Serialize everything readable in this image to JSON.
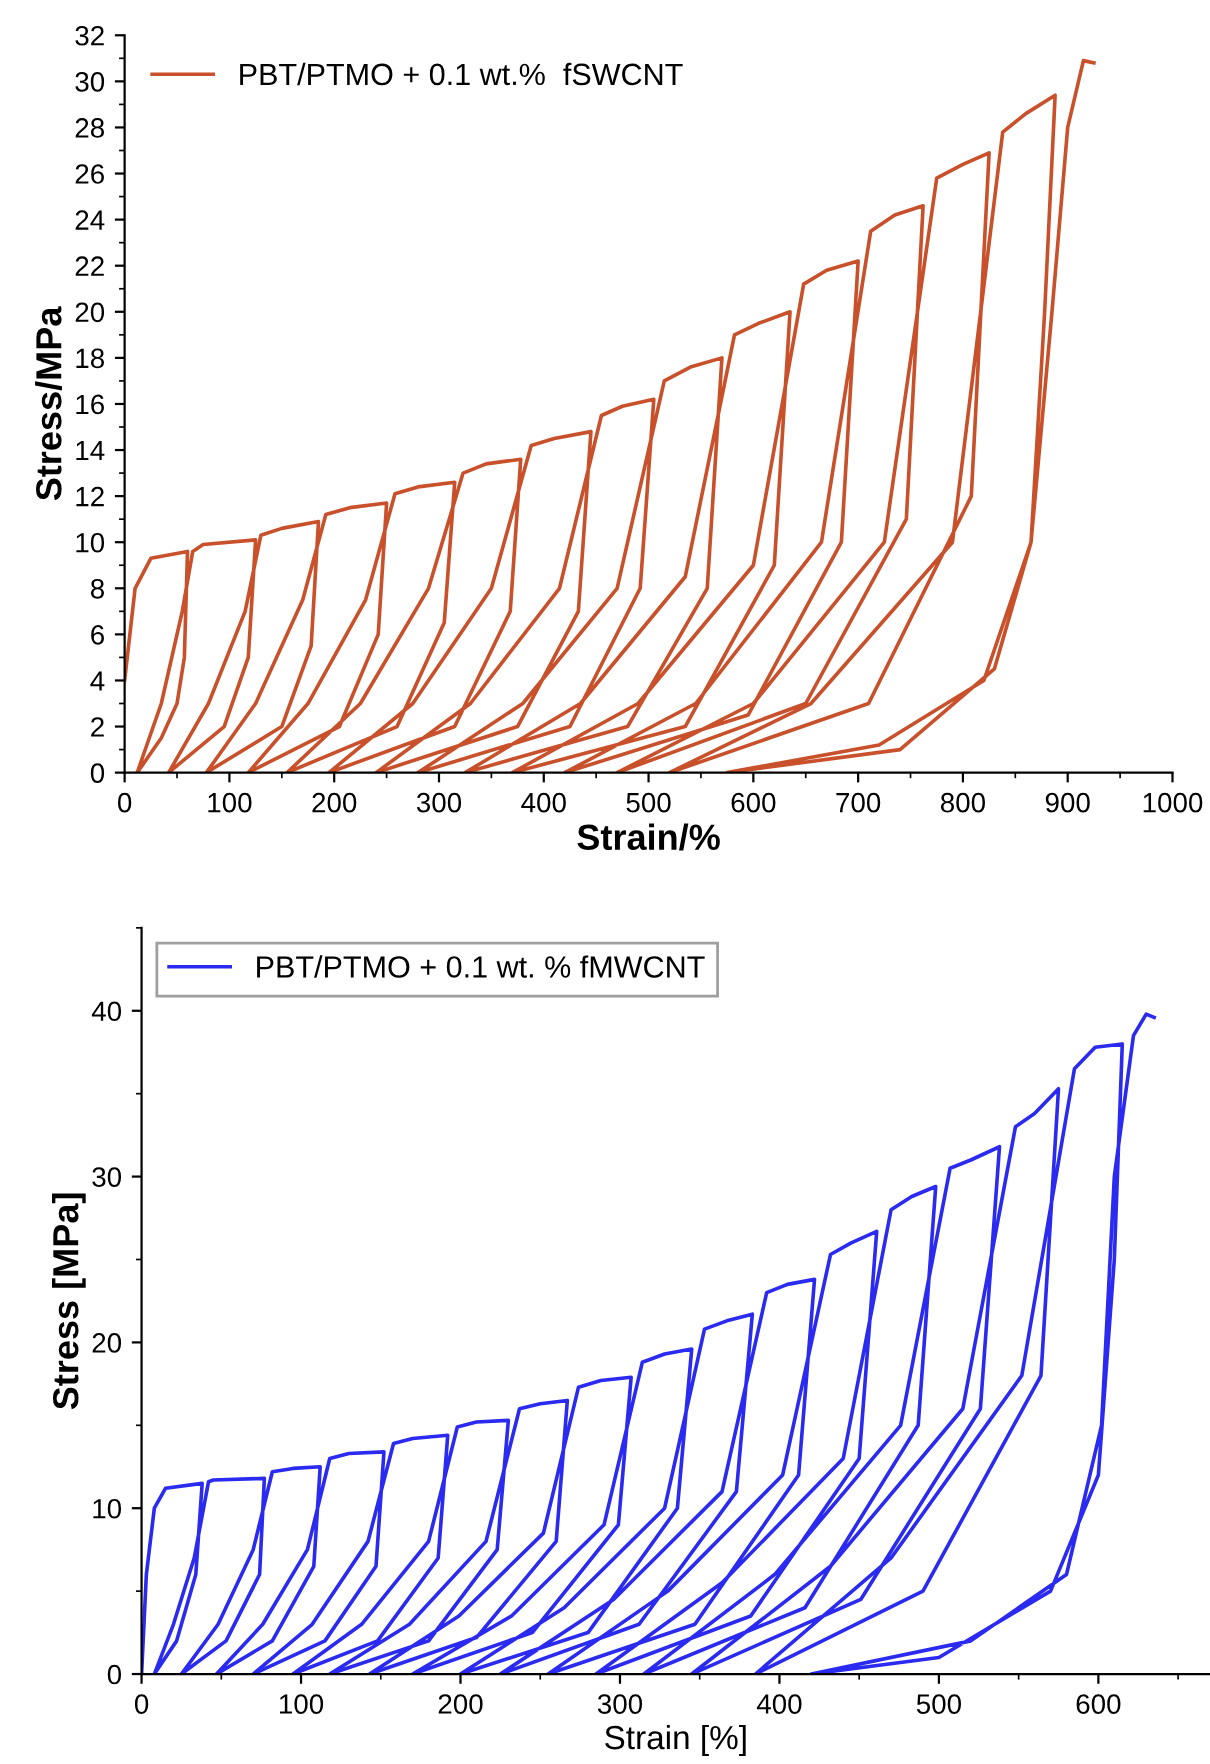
{
  "chart_data": [
    {
      "type": "line",
      "xlabel": "Strain/%",
      "ylabel": "Stress/MPa",
      "xlim": [
        0,
        1000
      ],
      "ylim": [
        0,
        32
      ],
      "xticks": [
        0,
        100,
        200,
        300,
        400,
        500,
        600,
        700,
        800,
        900,
        1000
      ],
      "yticks": [
        0,
        2,
        4,
        6,
        8,
        10,
        12,
        14,
        16,
        18,
        20,
        22,
        24,
        26,
        28,
        30,
        32
      ],
      "grid": false,
      "legend": "top left",
      "marker": "none",
      "line_style": "solid",
      "series": [
        {
          "name": "PBT/PTMO + 0.1 wt.%  fSWCNT",
          "color": "#c8502a",
          "x": [
            0,
            10,
            25,
            60,
            57,
            50,
            35,
            12,
            35,
            55,
            65,
            75,
            125,
            118,
            95,
            42,
            80,
            115,
            130,
            150,
            185,
            178,
            150,
            78,
            125,
            170,
            192,
            215,
            250,
            242,
            205,
            118,
            175,
            230,
            258,
            280,
            315,
            305,
            260,
            155,
            225,
            290,
            323,
            345,
            378,
            368,
            315,
            195,
            275,
            350,
            388,
            410,
            445,
            433,
            375,
            240,
            330,
            415,
            455,
            475,
            505,
            492,
            425,
            280,
            380,
            470,
            515,
            540,
            570,
            556,
            480,
            325,
            435,
            535,
            582,
            605,
            635,
            620,
            535,
            370,
            490,
            600,
            648,
            670,
            700,
            684,
            595,
            420,
            545,
            665,
            712,
            735,
            762,
            746,
            650,
            470,
            600,
            725,
            775,
            800,
            825,
            808,
            710,
            520,
            655,
            790,
            838,
            860,
            888,
            878,
            865,
            830,
            740,
            575,
            720,
            820,
            865,
            885,
            900,
            915,
            925
          ],
          "values": [
            4,
            8,
            9.3,
            9.6,
            5,
            3,
            1.5,
            0,
            3,
            7,
            9.6,
            9.9,
            10.1,
            5,
            2,
            0,
            3,
            7,
            10.3,
            10.6,
            10.9,
            5.5,
            2,
            0,
            3,
            7.5,
            11.2,
            11.5,
            11.7,
            6,
            2,
            0,
            3,
            7.5,
            12.1,
            12.4,
            12.6,
            6.5,
            2,
            0,
            3,
            8,
            13,
            13.4,
            13.6,
            7,
            2,
            0,
            3,
            8,
            14.2,
            14.5,
            14.8,
            7,
            2,
            0,
            3,
            8,
            15.5,
            15.9,
            16.2,
            8,
            2,
            0,
            3,
            8,
            17,
            17.6,
            18,
            8,
            2,
            0,
            3,
            8.5,
            19,
            19.5,
            20,
            9,
            2,
            0,
            3,
            9,
            21.2,
            21.8,
            22.2,
            10,
            2.5,
            0,
            3,
            10,
            23.5,
            24.2,
            24.6,
            11,
            3,
            0,
            3,
            10,
            25.8,
            26.4,
            26.9,
            12,
            3,
            0,
            3,
            10,
            27.8,
            28.6,
            29.4,
            20,
            10,
            4.5,
            1,
            0,
            1.2,
            4,
            10,
            20,
            28,
            30.9,
            30.8
          ]
        }
      ]
    },
    {
      "type": "line",
      "xlabel": "Strain [%]",
      "ylabel": "Stress [MPa]",
      "xlim": [
        0,
        670
      ],
      "ylim": [
        0,
        45
      ],
      "xticks": [
        0,
        100,
        200,
        300,
        400,
        500,
        600
      ],
      "yticks": [
        0,
        10,
        20,
        30,
        40
      ],
      "grid": false,
      "legend": "top left",
      "marker": "none",
      "line_style": "solid",
      "series": [
        {
          "name": "PBT/PTMO + 0.1 wt. % fMWCNT",
          "color": "#2a2af0",
          "x": [
            0,
            3,
            8,
            15,
            38,
            34,
            22,
            8,
            20,
            33,
            42,
            45,
            77,
            74,
            53,
            25,
            48,
            70,
            82,
            95,
            112,
            108,
            82,
            47,
            76,
            104,
            118,
            130,
            152,
            147,
            115,
            70,
            107,
            142,
            158,
            170,
            192,
            186,
            148,
            95,
            138,
            180,
            198,
            210,
            230,
            223,
            180,
            118,
            168,
            216,
            237,
            250,
            267,
            260,
            210,
            143,
            199,
            252,
            274,
            288,
            307,
            299,
            245,
            170,
            232,
            290,
            314,
            328,
            345,
            336,
            280,
            200,
            265,
            328,
            353,
            367,
            383,
            373,
            312,
            225,
            296,
            364,
            392,
            405,
            422,
            412,
            347,
            255,
            330,
            402,
            432,
            445,
            461,
            450,
            382,
            285,
            364,
            440,
            470,
            483,
            498,
            487,
            416,
            315,
            397,
            476,
            507,
            520,
            538,
            526,
            451,
            345,
            432,
            515,
            548,
            560,
            575,
            564,
            490,
            385,
            470,
            552,
            585,
            598,
            615,
            610,
            600,
            570,
            500,
            420,
            520,
            580,
            602,
            610,
            622,
            630,
            635
          ],
          "values": [
            0,
            6,
            10,
            11.2,
            11.5,
            6,
            2,
            0,
            3,
            7,
            11.6,
            11.7,
            11.8,
            6,
            2,
            0,
            3,
            7.5,
            12.2,
            12.4,
            12.5,
            6.5,
            2,
            0,
            3,
            7.5,
            13,
            13.3,
            13.4,
            6.5,
            2,
            0,
            3,
            8,
            13.9,
            14.2,
            14.4,
            7,
            2,
            0,
            3,
            8,
            14.9,
            15.2,
            15.3,
            7.5,
            2,
            0,
            3,
            8,
            16,
            16.3,
            16.5,
            8,
            2.2,
            0,
            3.5,
            8.5,
            17.3,
            17.7,
            17.9,
            9,
            2.5,
            0,
            3.5,
            9,
            18.8,
            19.3,
            19.6,
            10,
            2.5,
            0,
            4,
            10,
            20.8,
            21.3,
            21.7,
            11,
            3,
            0,
            4.5,
            11,
            23,
            23.5,
            23.8,
            12,
            3,
            0,
            5,
            12,
            25.3,
            26,
            26.7,
            13,
            3.5,
            0,
            5.5,
            13,
            28,
            28.8,
            29.4,
            15,
            4,
            0,
            6,
            15,
            30.5,
            31,
            31.8,
            16,
            4.5,
            0,
            6.5,
            16,
            33,
            33.8,
            35.3,
            18,
            5,
            0,
            7,
            18,
            36.5,
            37.8,
            38,
            25,
            12,
            5,
            1,
            0,
            2,
            6,
            15,
            30,
            38.5,
            39.8,
            39.6
          ]
        }
      ]
    }
  ]
}
